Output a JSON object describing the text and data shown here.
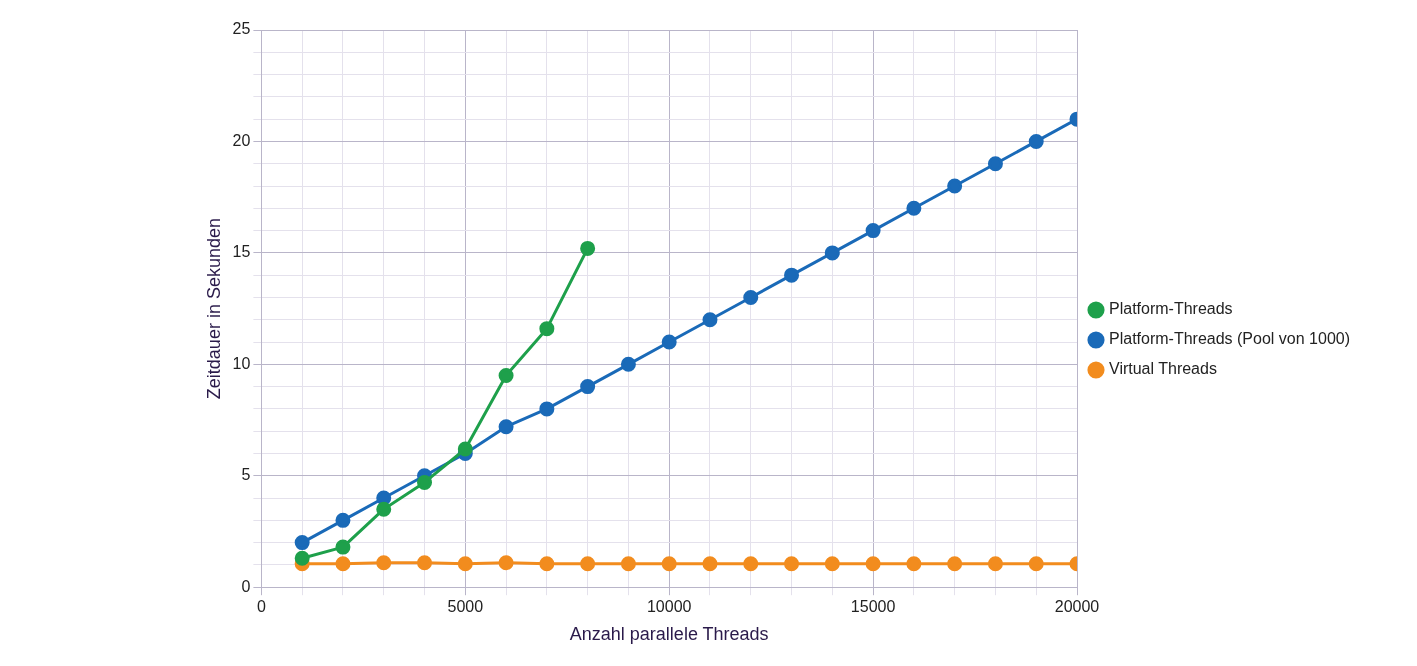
{
  "chart_data": {
    "type": "line",
    "xlabel": "Anzahl parallele Threads",
    "ylabel": "Zeitdauer in Sekunden",
    "xlim": [
      0,
      20000
    ],
    "xticks": [
      0,
      {
        "value": 1000,
        "label": null
      },
      {
        "value": 2000,
        "label": null
      },
      {
        "value": 3000,
        "label": null
      },
      {
        "value": 4000,
        "label": null
      },
      5000,
      {
        "value": 6000,
        "label": null
      },
      {
        "value": 7000,
        "label": null
      },
      {
        "value": 8000,
        "label": null
      },
      {
        "value": 9000,
        "label": null
      },
      10000,
      {
        "value": 11000,
        "label": null
      },
      {
        "value": 12000,
        "label": null
      },
      {
        "value": 13000,
        "label": null
      },
      {
        "value": 14000,
        "label": null
      },
      15000,
      {
        "value": 16000,
        "label": null
      },
      {
        "value": 17000,
        "label": null
      },
      {
        "value": 18000,
        "label": null
      },
      {
        "value": 19000,
        "label": null
      },
      20000
    ],
    "ylim": [
      0,
      25
    ],
    "yticks": [
      0,
      {
        "value": 1,
        "label": null
      },
      {
        "value": 2,
        "label": null
      },
      {
        "value": 3,
        "label": null
      },
      {
        "value": 4,
        "label": null
      },
      5,
      {
        "value": 6,
        "label": null
      },
      {
        "value": 7,
        "label": null
      },
      {
        "value": 8,
        "label": null
      },
      {
        "value": 9,
        "label": null
      },
      10,
      {
        "value": 11,
        "label": null
      },
      {
        "value": 12,
        "label": null
      },
      {
        "value": 13,
        "label": null
      },
      {
        "value": 14,
        "label": null
      },
      15,
      {
        "value": 16,
        "label": null
      },
      {
        "value": 17,
        "label": null
      },
      {
        "value": 18,
        "label": null
      },
      {
        "value": 19,
        "label": null
      },
      20,
      {
        "value": 21,
        "label": null
      },
      {
        "value": 22,
        "label": null
      },
      {
        "value": 23,
        "label": null
      },
      {
        "value": 24,
        "label": null
      },
      25
    ],
    "grid": true,
    "legend": "right",
    "marker": "circle",
    "line_style": "solid",
    "series": [
      {
        "name": "Platform-Threads",
        "color": "#1ea04b",
        "x": [
          1000,
          2000,
          3000,
          4000,
          5000,
          6000,
          7000,
          8000
        ],
        "values": [
          1.3,
          1.8,
          3.5,
          4.7,
          6.2,
          9.5,
          11.6,
          15.2
        ]
      },
      {
        "name": "Platform-Threads (Pool von 1000)",
        "color": "#1a6ab8",
        "x": [
          1000,
          2000,
          3000,
          4000,
          5000,
          6000,
          7000,
          8000,
          9000,
          10000,
          11000,
          12000,
          13000,
          14000,
          15000,
          16000,
          17000,
          18000,
          19000,
          20000
        ],
        "values": [
          2,
          3,
          4,
          5,
          6,
          7.2,
          8,
          9,
          10,
          11,
          12,
          13,
          14,
          15,
          16,
          17,
          18,
          19,
          20,
          21
        ]
      },
      {
        "name": "Virtual Threads",
        "color": "#f28c1e",
        "x": [
          1000,
          2000,
          3000,
          4000,
          5000,
          6000,
          7000,
          8000,
          9000,
          10000,
          11000,
          12000,
          13000,
          14000,
          15000,
          16000,
          17000,
          18000,
          19000,
          20000
        ],
        "values": [
          1.05,
          1.05,
          1.1,
          1.1,
          1.05,
          1.1,
          1.05,
          1.05,
          1.05,
          1.05,
          1.05,
          1.05,
          1.05,
          1.05,
          1.05,
          1.05,
          1.05,
          1.05,
          1.05,
          1.05
        ]
      }
    ]
  }
}
